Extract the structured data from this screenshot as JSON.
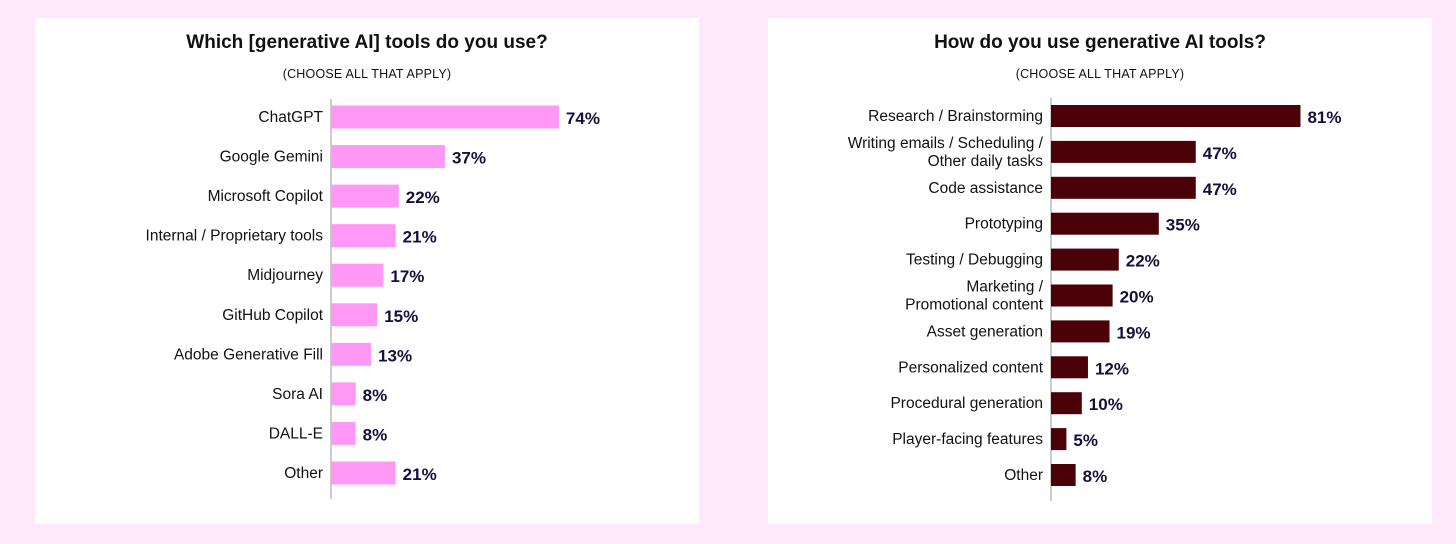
{
  "chart_data": [
    {
      "type": "bar",
      "orientation": "horizontal",
      "title": "Which [generative AI] tools do you use?",
      "subtitle": "(CHOOSE ALL THAT APPLY)",
      "categories": [
        "ChatGPT",
        "Google Gemini",
        "Microsoft Copilot",
        "Internal / Proprietary tools",
        "Midjourney",
        "GitHub Copilot",
        "Adobe Generative Fill",
        "Sora AI",
        "DALL-E",
        "Other"
      ],
      "values": [
        74,
        37,
        22,
        21,
        17,
        15,
        13,
        8,
        8,
        21
      ],
      "value_labels": [
        "74%",
        "37%",
        "22%",
        "21%",
        "17%",
        "15%",
        "13%",
        "8%",
        "8%",
        "21%"
      ],
      "unit": "%",
      "bar_color": "#ff99f5",
      "grid": false
    },
    {
      "type": "bar",
      "orientation": "horizontal",
      "title": "How do you use generative AI tools?",
      "subtitle": "(CHOOSE ALL THAT APPLY)",
      "categories": [
        "Research / Brainstorming",
        "Writing emails / Scheduling / Other daily tasks",
        "Code assistance",
        "Prototyping",
        "Testing / Debugging",
        "Marketing / Promotional content",
        "Asset generation",
        "Personalized content",
        "Procedural generation",
        "Player-facing features",
        "Other"
      ],
      "category_lines": [
        [
          "Research / Brainstorming"
        ],
        [
          "Writing emails / Scheduling /",
          "Other daily tasks"
        ],
        [
          "Code assistance"
        ],
        [
          "Prototyping"
        ],
        [
          "Testing / Debugging"
        ],
        [
          "Marketing /",
          "Promotional content"
        ],
        [
          "Asset generation"
        ],
        [
          "Personalized content"
        ],
        [
          "Procedural generation"
        ],
        [
          "Player-facing features"
        ],
        [
          "Other"
        ]
      ],
      "values": [
        81,
        47,
        47,
        35,
        22,
        20,
        19,
        12,
        10,
        5,
        8
      ],
      "value_labels": [
        "81%",
        "47%",
        "47%",
        "35%",
        "22%",
        "20%",
        "19%",
        "12%",
        "10%",
        "5%",
        "8%"
      ],
      "unit": "%",
      "bar_color": "#4a0108",
      "grid": false
    }
  ]
}
